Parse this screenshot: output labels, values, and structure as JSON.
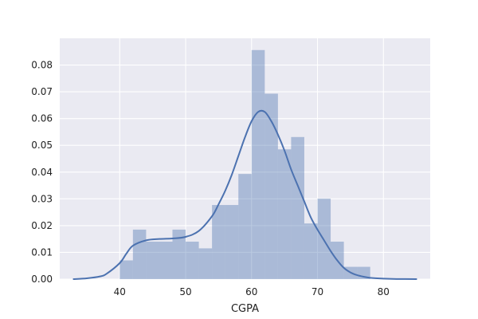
{
  "chart_data": {
    "type": "histogram",
    "title": "",
    "xlabel": "CGPA",
    "ylabel": "",
    "xlim": [
      30.9,
      87.1
    ],
    "ylim": [
      0.0,
      0.09
    ],
    "xticks": [
      40,
      50,
      60,
      70,
      80
    ],
    "yticks": [
      0.0,
      0.01,
      0.02,
      0.03,
      0.04,
      0.05,
      0.06,
      0.07,
      0.08
    ],
    "ytick_labels": [
      "0.00",
      "0.01",
      "0.02",
      "0.03",
      "0.04",
      "0.05",
      "0.06",
      "0.07",
      "0.08"
    ],
    "grid": true,
    "bin_width": 2.0,
    "bins": [
      {
        "x0": 40.0,
        "x1": 42.0,
        "density": 0.007
      },
      {
        "x0": 42.0,
        "x1": 44.0,
        "density": 0.0185
      },
      {
        "x0": 44.0,
        "x1": 46.0,
        "density": 0.014
      },
      {
        "x0": 46.0,
        "x1": 48.0,
        "density": 0.014
      },
      {
        "x0": 48.0,
        "x1": 50.0,
        "density": 0.0185
      },
      {
        "x0": 50.0,
        "x1": 52.0,
        "density": 0.014
      },
      {
        "x0": 52.0,
        "x1": 54.0,
        "density": 0.0115
      },
      {
        "x0": 54.0,
        "x1": 56.0,
        "density": 0.0277
      },
      {
        "x0": 56.0,
        "x1": 58.0,
        "density": 0.0277
      },
      {
        "x0": 58.0,
        "x1": 60.0,
        "density": 0.0393
      },
      {
        "x0": 60.0,
        "x1": 62.0,
        "density": 0.0856
      },
      {
        "x0": 62.0,
        "x1": 64.0,
        "density": 0.0693
      },
      {
        "x0": 64.0,
        "x1": 66.0,
        "density": 0.0485
      },
      {
        "x0": 66.0,
        "x1": 68.0,
        "density": 0.0531
      },
      {
        "x0": 68.0,
        "x1": 70.0,
        "density": 0.0208
      },
      {
        "x0": 70.0,
        "x1": 72.0,
        "density": 0.0301
      },
      {
        "x0": 72.0,
        "x1": 74.0,
        "density": 0.014
      },
      {
        "x0": 74.0,
        "x1": 76.0,
        "density": 0.0046
      },
      {
        "x0": 76.0,
        "x1": 78.0,
        "density": 0.0046
      }
    ],
    "kde": {
      "x": [
        33,
        35,
        37,
        38,
        40,
        41,
        42,
        44,
        46,
        48,
        50,
        52,
        54,
        55,
        56,
        57,
        58,
        59,
        60,
        61,
        62,
        63,
        64,
        65,
        66,
        67,
        68,
        69,
        70,
        71,
        72,
        73,
        74,
        75,
        76,
        77,
        78,
        80,
        82,
        85
      ],
      "y": [
        0.0,
        0.0003,
        0.001,
        0.002,
        0.006,
        0.0095,
        0.0125,
        0.0145,
        0.015,
        0.0152,
        0.0158,
        0.018,
        0.0235,
        0.028,
        0.033,
        0.039,
        0.046,
        0.053,
        0.059,
        0.0625,
        0.0625,
        0.059,
        0.054,
        0.048,
        0.041,
        0.035,
        0.029,
        0.023,
        0.0185,
        0.0145,
        0.0105,
        0.007,
        0.0042,
        0.0025,
        0.0015,
        0.0009,
        0.0005,
        0.0002,
        5e-05,
        0.0
      ]
    },
    "colors": {
      "plot_background": "#eaeaf2",
      "grid": "#ffffff",
      "bars": "#4c72b0",
      "bar_opacity": 0.4,
      "kde_line": "#4c72b0"
    }
  }
}
